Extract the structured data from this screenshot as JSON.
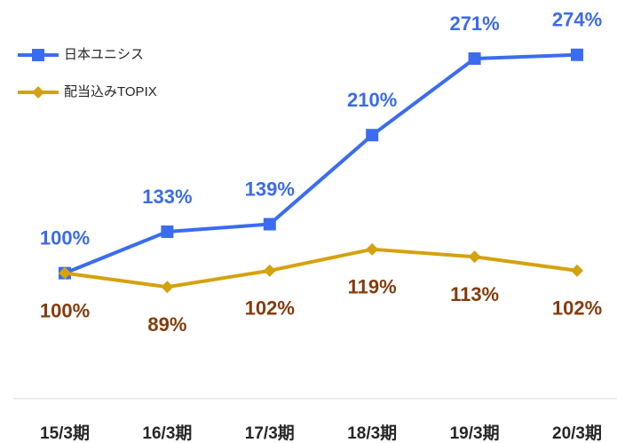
{
  "chart_data": {
    "type": "line",
    "categories": [
      "15/3期",
      "16/3期",
      "17/3期",
      "18/3期",
      "19/3期",
      "20/3期"
    ],
    "series": [
      {
        "name": "日本ユニシス",
        "color": "#3b6cf0",
        "label_color": "#3b6be8",
        "marker": "square",
        "values": [
          100,
          133,
          139,
          210,
          271,
          274
        ],
        "value_labels": [
          "100%",
          "133%",
          "139%",
          "210%",
          "271%",
          "274%"
        ]
      },
      {
        "name": "配当込みTOPIX",
        "color": "#d4a20f",
        "label_color": "#843c0c",
        "marker": "diamond",
        "values": [
          100,
          89,
          102,
          119,
          113,
          102
        ],
        "value_labels": [
          "100%",
          "89%",
          "102%",
          "119%",
          "113%",
          "102%"
        ]
      }
    ],
    "ylim": [
      0,
      300
    ],
    "legend": "top-left"
  }
}
